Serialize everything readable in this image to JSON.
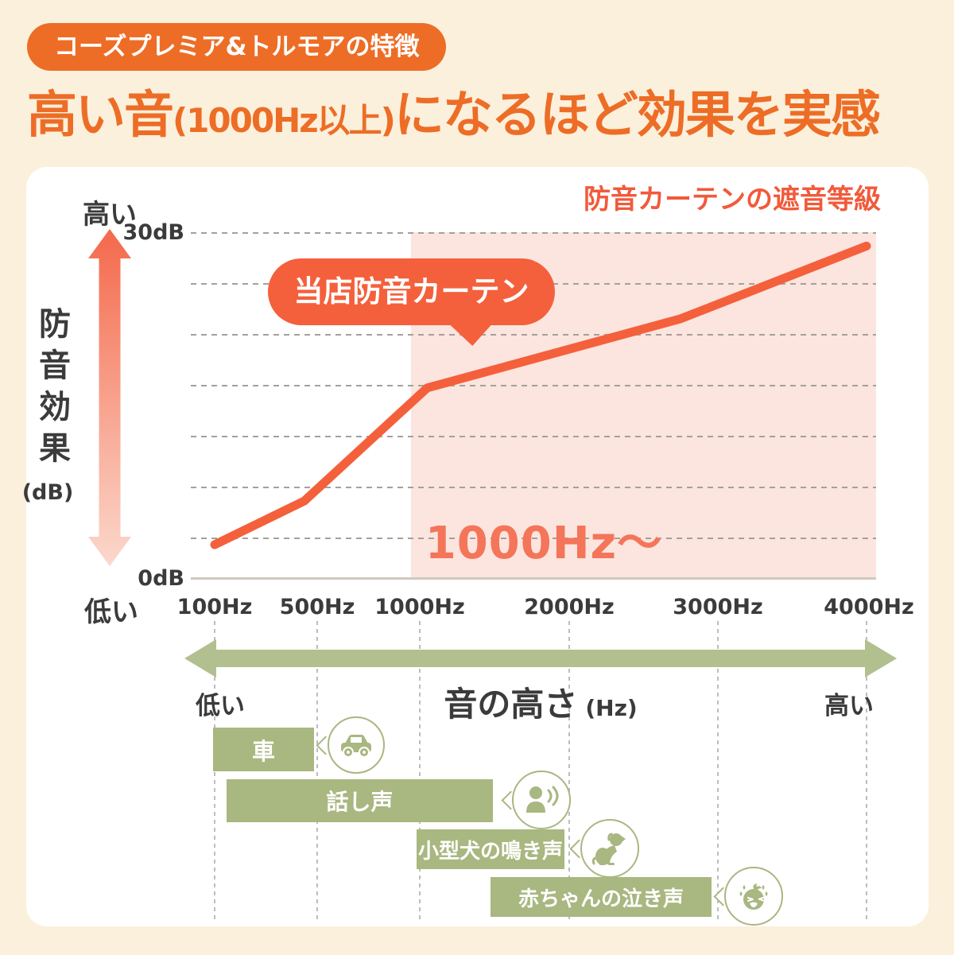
{
  "badge": {
    "label": "コーズプレミア&トルモアの特徴",
    "bg_color": "#ED6D26"
  },
  "heading": {
    "part_big_1": "高い音",
    "part_small": "(1000Hz以上)",
    "part_big_2": "になるほど効果を実感",
    "color": "#ED6D26"
  },
  "chart": {
    "title": "防音カーテンの遮音等級",
    "callout_label": "当店防音カーテン",
    "highlight_label": "1000Hz〜",
    "y_axis_title": "防音効果",
    "y_axis_unit": "(dB)",
    "y_top_label": "30dB",
    "y_bottom_label": "0dB",
    "y_arrow_top_label": "高い",
    "y_arrow_bottom_label": "低い",
    "line_color": "#F4603C",
    "highlight_fill": "#FBE5DE"
  },
  "chart_data": {
    "type": "line",
    "title": "防音カーテンの遮音等級",
    "x": [
      100,
      500,
      1000,
      2000,
      3000,
      4000
    ],
    "x_tick_labels": [
      "100Hz",
      "500Hz",
      "1000Hz",
      "2000Hz",
      "3000Hz",
      "4000Hz"
    ],
    "xlabel": "音の高さ (Hz)",
    "ylabel": "防音効果 (dB)",
    "ylim": [
      0,
      30
    ],
    "grid": "horizontal-dashed",
    "series": [
      {
        "name": "当店防音カーテン",
        "values_at_ticks_dB": [
          3,
          8,
          16.5,
          20,
          24,
          29
        ]
      }
    ],
    "polyline_points_hz_db": [
      [
        100,
        2.9
      ],
      [
        450,
        6.7
      ],
      [
        1050,
        16.5
      ],
      [
        2750,
        22.5
      ],
      [
        4000,
        28.8
      ]
    ],
    "highlight_region": {
      "from_hz": 1000,
      "to_hz": 4000,
      "label": "1000Hz〜"
    },
    "annotation": "当店防音カーテン",
    "legend_position": "none"
  },
  "frequency_axis": {
    "left_label": "低い",
    "title": "音の高さ",
    "unit": "(Hz)",
    "right_label": "高い",
    "arrow_color": "#B2C08F"
  },
  "sound_bars": [
    {
      "label": "車",
      "icon": "car",
      "approx_range_hz": [
        100,
        500
      ]
    },
    {
      "label": "話し声",
      "icon": "talking-person",
      "approx_range_hz": [
        150,
        1500
      ]
    },
    {
      "label": "小型犬の鳴き声",
      "icon": "dog",
      "approx_range_hz": [
        1000,
        2000
      ]
    },
    {
      "label": "赤ちゃんの泣き声",
      "icon": "crying-baby",
      "approx_range_hz": [
        1500,
        3000
      ]
    }
  ],
  "colors": {
    "background": "#FBF0DC",
    "card": "#FFFFFF",
    "orange": "#ED6D26",
    "red_line": "#F4603C",
    "pink_region": "#FBE5DE",
    "olive_bars": "#A9B780",
    "sage_arrow": "#B2C08F",
    "text": "#3B3B3B"
  }
}
